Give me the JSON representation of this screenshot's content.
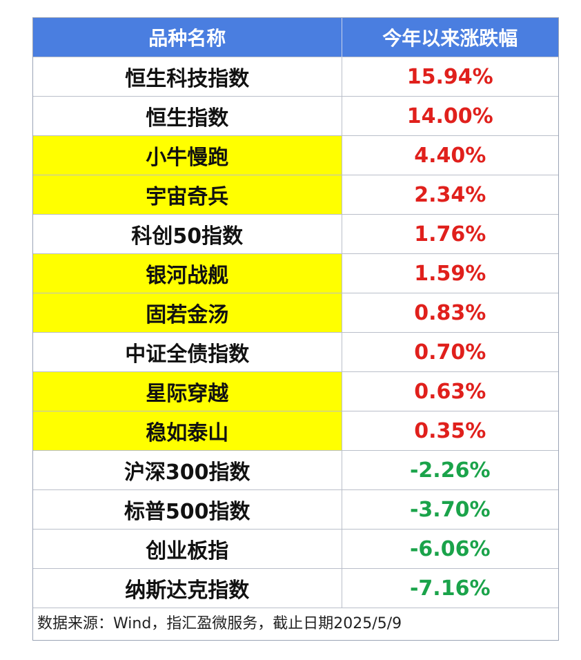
{
  "table": {
    "headers": [
      "品种名称",
      "今年以来涨跌幅"
    ],
    "rows": [
      {
        "name": "恒生科技指数",
        "value": "15.94%",
        "highlight": false,
        "direction": "up"
      },
      {
        "name": "恒生指数",
        "value": "14.00%",
        "highlight": false,
        "direction": "up"
      },
      {
        "name": "小牛慢跑",
        "value": "4.40%",
        "highlight": true,
        "direction": "up"
      },
      {
        "name": "宇宙奇兵",
        "value": "2.34%",
        "highlight": true,
        "direction": "up"
      },
      {
        "name": "科创50指数",
        "value": "1.76%",
        "highlight": false,
        "direction": "up"
      },
      {
        "name": "银河战舰",
        "value": "1.59%",
        "highlight": true,
        "direction": "up"
      },
      {
        "name": "固若金汤",
        "value": "0.83%",
        "highlight": true,
        "direction": "up"
      },
      {
        "name": "中证全债指数",
        "value": "0.70%",
        "highlight": false,
        "direction": "up"
      },
      {
        "name": "星际穿越",
        "value": "0.63%",
        "highlight": true,
        "direction": "up"
      },
      {
        "name": "稳如泰山",
        "value": "0.35%",
        "highlight": true,
        "direction": "up"
      },
      {
        "name": "沪深300指数",
        "value": "-2.26%",
        "highlight": false,
        "direction": "down"
      },
      {
        "name": "标普500指数",
        "value": "-3.70%",
        "highlight": false,
        "direction": "down"
      },
      {
        "name": "创业板指",
        "value": "-6.06%",
        "highlight": false,
        "direction": "down"
      },
      {
        "name": "纳斯达克指数",
        "value": "-7.16%",
        "highlight": false,
        "direction": "down"
      }
    ]
  },
  "source_note": "数据来源：Wind，指汇盈微服务，截止日期2025/5/9",
  "colors": {
    "header_bg": "#4a7ee0",
    "highlight_bg": "#ffff00",
    "positive": "#e0201c",
    "negative": "#1aa34a"
  }
}
